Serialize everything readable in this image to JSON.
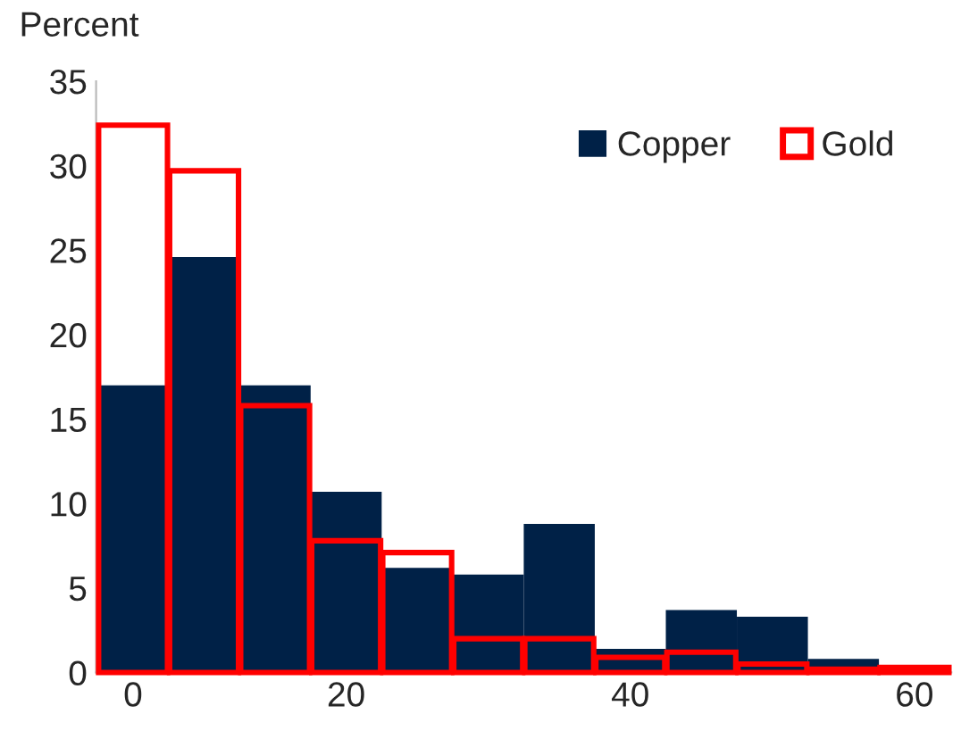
{
  "chart_data": {
    "type": "bar",
    "ylabel": "Percent",
    "categories": [
      "0",
      null,
      null,
      "20",
      null,
      null,
      null,
      "40",
      null,
      null,
      null,
      "60"
    ],
    "series": [
      {
        "name": "Copper",
        "color": "#002147",
        "values": [
          17.0,
          24.6,
          17.0,
          10.7,
          6.2,
          5.8,
          8.8,
          1.4,
          3.7,
          3.3,
          0.8,
          null
        ]
      },
      {
        "name": "Gold",
        "color": "#ff0000",
        "values": [
          32.4,
          29.7,
          15.8,
          7.8,
          7.1,
          2.0,
          2.0,
          0.9,
          1.2,
          0.5,
          0.2,
          0.3
        ]
      }
    ],
    "ylim": [
      0,
      35
    ],
    "yticks": [
      0,
      5,
      10,
      15,
      20,
      25,
      30,
      35
    ],
    "grid": false,
    "legend": "top right"
  }
}
